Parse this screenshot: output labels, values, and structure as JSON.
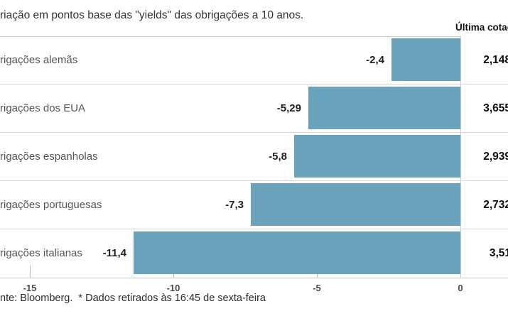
{
  "header": {
    "title": "riação em pontos base das \"yields\" das obrigações a 10 anos.",
    "last_quote_column_label": "Última cotaç"
  },
  "chart_data": {
    "type": "bar",
    "orientation": "horizontal",
    "title": "riação em pontos base das \"yields\" das obrigações a 10 anos.",
    "categories": [
      "rigações alemãs",
      "rigações dos EUA",
      "rigações espanholas",
      "rigações portuguesas",
      "rigações italianas"
    ],
    "values": [
      -2.4,
      -5.29,
      -5.8,
      -7.3,
      -11.4
    ],
    "value_labels": [
      "-2,4",
      "-5,29",
      "-5,8",
      "-7,3",
      "-11,4"
    ],
    "last_quote_header": "Última cotaç",
    "last_quotes": [
      "2,148",
      "3,655",
      "2,939",
      "2,732",
      "3,51"
    ],
    "x_ticks": [
      "-15",
      "-10",
      "-5",
      "0"
    ],
    "x_tick_values": [
      -15,
      -10,
      -5,
      0
    ],
    "xlim": [
      -16,
      1.7
    ],
    "grid": "zero-line-only",
    "legend": "none",
    "bar_color": "#6aa2bc"
  },
  "footer": {
    "text": "nte: Bloomberg.  * Dados retirados às 16:45 de sexta-feira"
  },
  "colors": {
    "bar": "#6aa2bc",
    "row_divider": "#d8d8d8",
    "axis_line": "#c6c6c6",
    "text_primary": "#1f1f1f",
    "text_secondary": "#545454"
  }
}
